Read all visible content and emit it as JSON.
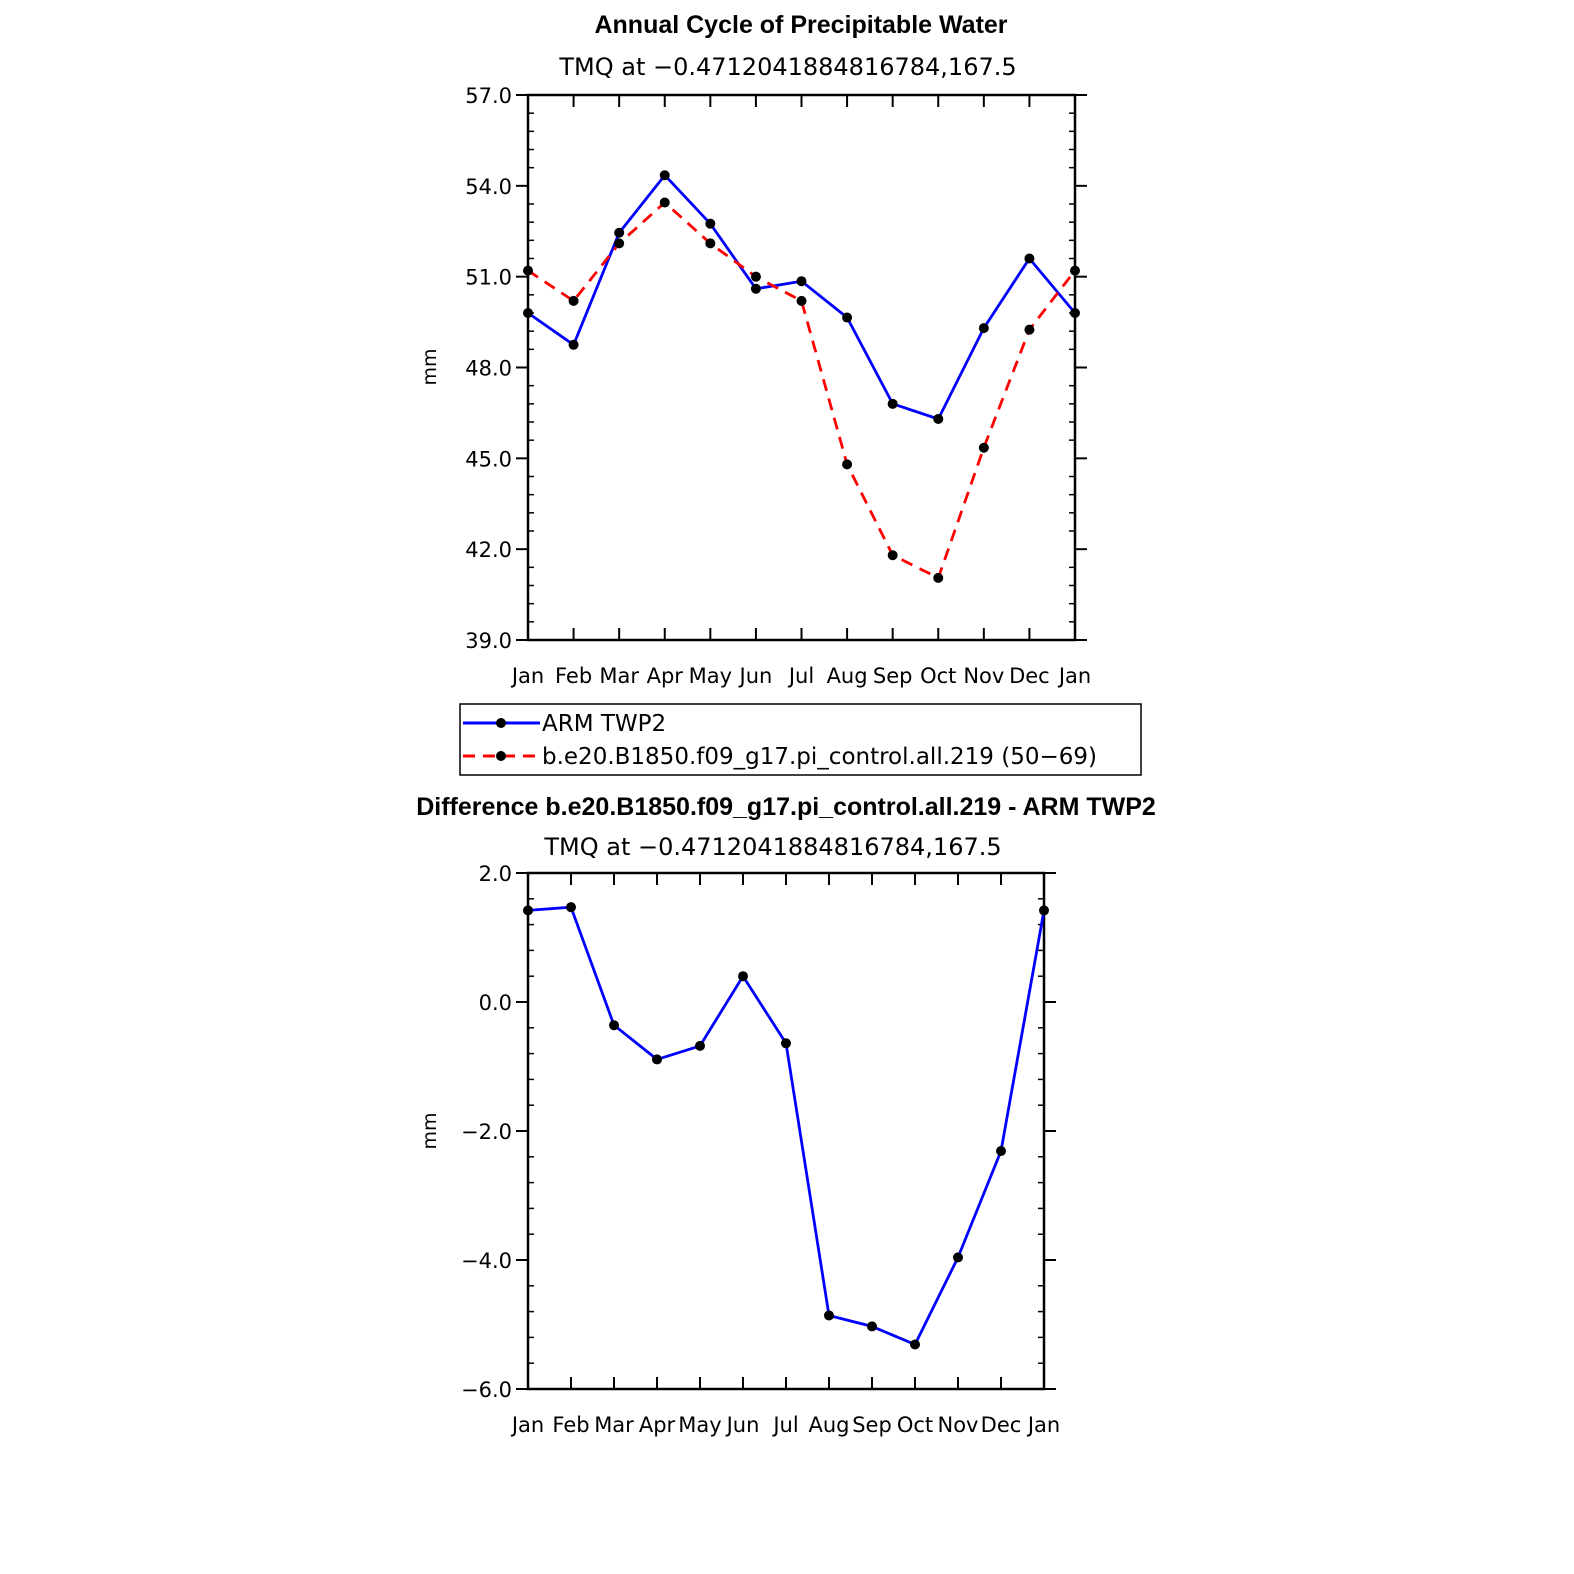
{
  "chart_data": [
    {
      "type": "line",
      "title": "Annual Cycle of Precipitable Water",
      "subtitle": "TMQ at −0.4712041884816784,167.5",
      "xlabel": "",
      "ylabel": "mm",
      "categories": [
        "Jan",
        "Feb",
        "Mar",
        "Apr",
        "May",
        "Jun",
        "Jul",
        "Aug",
        "Sep",
        "Oct",
        "Nov",
        "Dec",
        "Jan"
      ],
      "ylim": [
        39.0,
        57.0
      ],
      "yticks": [
        39.0,
        42.0,
        45.0,
        48.0,
        51.0,
        54.0,
        57.0
      ],
      "ytick_labels": [
        "39.0",
        "42.0",
        "45.0",
        "48.0",
        "51.0",
        "54.0",
        "57.0"
      ],
      "grid": false,
      "legend_position": "bottom",
      "series": [
        {
          "name": "ARM TWP2",
          "color": "#0000ff",
          "style": "solid",
          "values": [
            49.8,
            48.75,
            52.45,
            54.35,
            52.75,
            50.6,
            50.85,
            49.65,
            46.8,
            46.3,
            49.3,
            51.6,
            49.8
          ]
        },
        {
          "name": "b.e20.B1850.f09_g17.pi_control.all.219 (50−69)",
          "color": "#ff0000",
          "style": "dashed",
          "values": [
            51.2,
            50.2,
            52.1,
            53.45,
            52.1,
            51.0,
            50.2,
            44.8,
            41.8,
            41.05,
            45.35,
            49.25,
            51.2
          ]
        }
      ]
    },
    {
      "type": "line",
      "title": "Difference b.e20.B1850.f09_g17.pi_control.all.219 - ARM TWP2",
      "subtitle": "TMQ at −0.4712041884816784,167.5",
      "xlabel": "",
      "ylabel": "mm",
      "categories": [
        "Jan",
        "Feb",
        "Mar",
        "Apr",
        "May",
        "Jun",
        "Jul",
        "Aug",
        "Sep",
        "Oct",
        "Nov",
        "Dec",
        "Jan"
      ],
      "ylim": [
        -6.0,
        2.0
      ],
      "yticks": [
        -6.0,
        -4.0,
        -2.0,
        0.0,
        2.0
      ],
      "ytick_labels": [
        "−6.0",
        "−4.0",
        "−2.0",
        "0.0",
        "2.0"
      ],
      "grid": false,
      "series": [
        {
          "name": "Difference",
          "color": "#0000ff",
          "style": "solid",
          "values": [
            1.42,
            1.47,
            -0.36,
            -0.89,
            -0.68,
            0.4,
            -0.64,
            -4.86,
            -5.03,
            -5.31,
            -3.96,
            -2.31,
            1.42
          ]
        }
      ]
    }
  ]
}
